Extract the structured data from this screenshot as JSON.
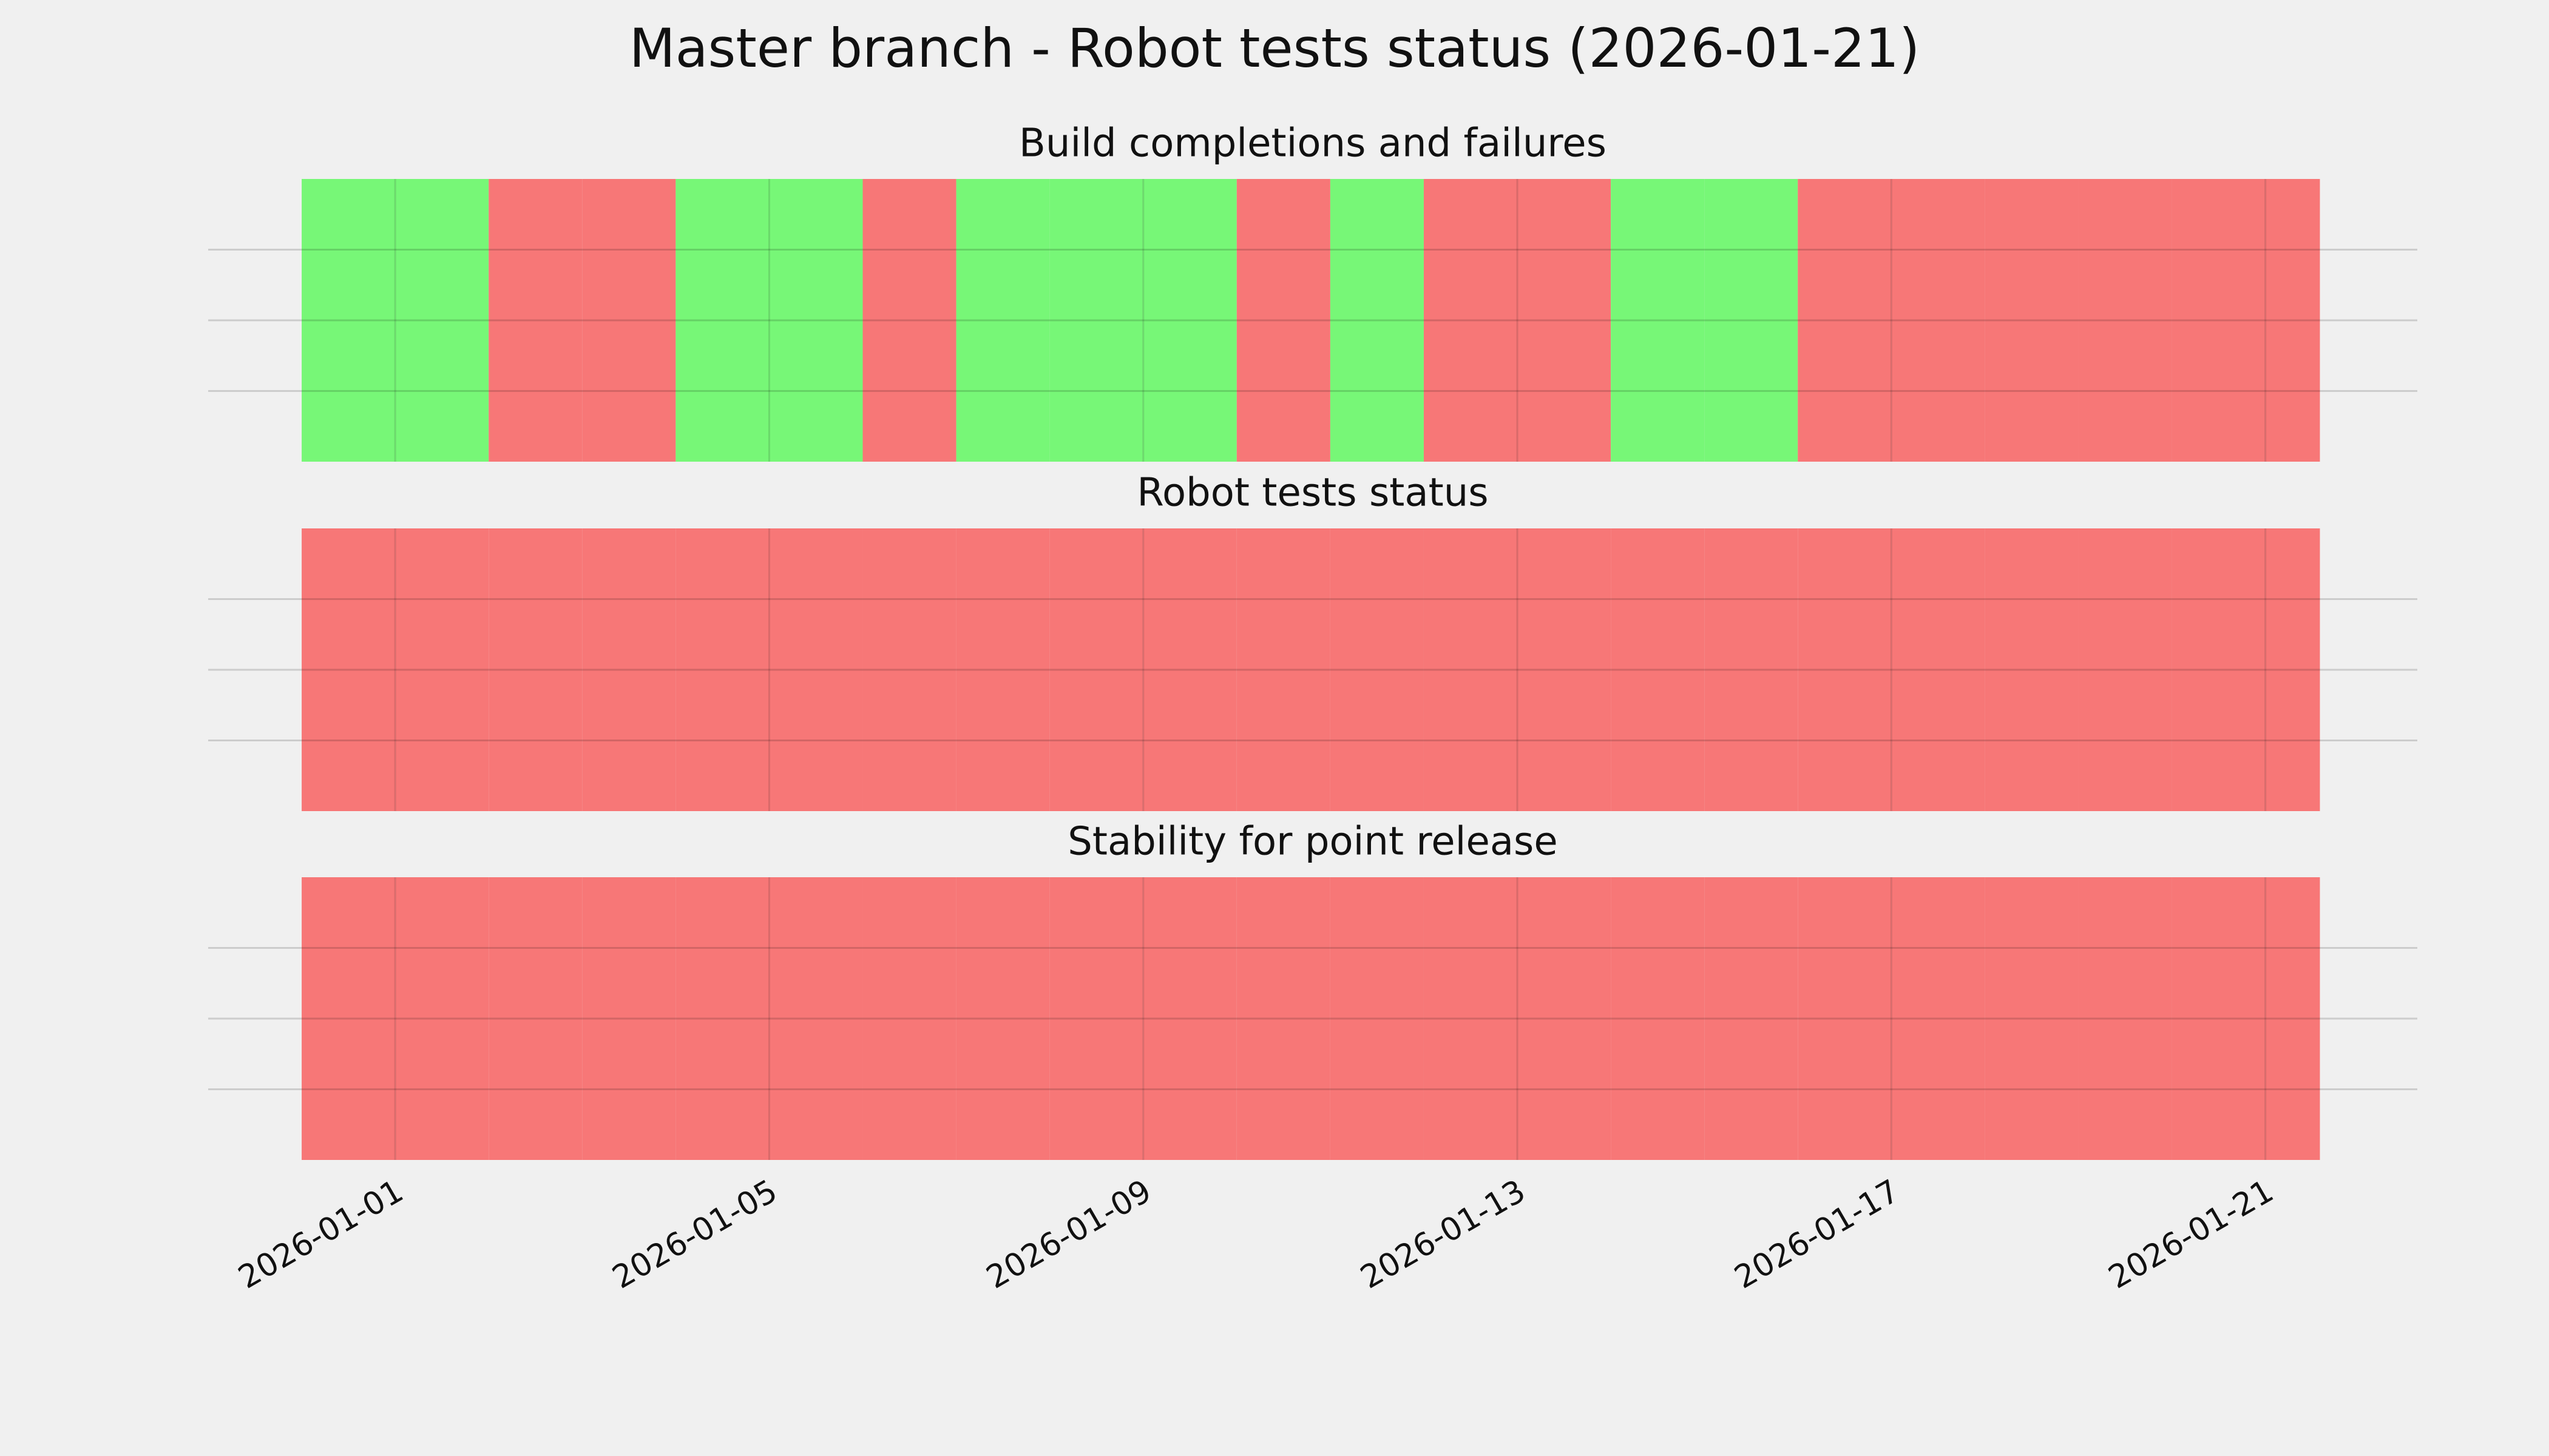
{
  "chart_data": {
    "type": "timeline",
    "title": "Master branch - Robot tests status (2026-01-21)",
    "xlim": [
      "2025-12-30",
      "2026-01-22T15:00"
    ],
    "end": "2026-01-21T14:00",
    "xticks": [
      "2026-01-01",
      "2026-01-05",
      "2026-01-09",
      "2026-01-13",
      "2026-01-17",
      "2026-01-21"
    ],
    "ylim": [
      0,
      1
    ],
    "yticks": [
      0.25,
      0.5,
      0.75
    ],
    "grid": true,
    "x": [
      "2025-12-31",
      "2026-01-01",
      "2026-01-02",
      "2026-01-03",
      "2026-01-04",
      "2026-01-05",
      "2026-01-06",
      "2026-01-07",
      "2026-01-08",
      "2026-01-09",
      "2026-01-10",
      "2026-01-11",
      "2026-01-12",
      "2026-01-13",
      "2026-01-14",
      "2026-01-15",
      "2026-01-16",
      "2026-01-17",
      "2026-01-18",
      "2026-01-19",
      "2026-01-20",
      "2026-01-21"
    ],
    "panels": [
      {
        "title": "Build completions and failures",
        "colors": [
          "#77f777",
          "#77f777",
          "#f77777",
          "#f77777",
          "#77f777",
          "#77f777",
          "#f77777",
          "#77f777",
          "#77f777",
          "#77f777",
          "#f77777",
          "#77f777",
          "#f77777",
          "#f77777",
          "#77f777",
          "#77f777",
          "#f77777",
          "#f77777",
          "#f77777",
          "#f77777",
          "#f77777",
          "#f77777"
        ]
      },
      {
        "title": "Robot tests status",
        "colors": [
          "#f77777",
          "#f77777",
          "#f77777",
          "#f77777",
          "#f77777",
          "#f77777",
          "#f77777",
          "#f77777",
          "#f77777",
          "#f77777",
          "#f77777",
          "#f77777",
          "#f77777",
          "#f77777",
          "#f77777",
          "#f77777",
          "#f77777",
          "#f77777",
          "#f77777",
          "#f77777",
          "#f77777",
          "#f77777"
        ]
      },
      {
        "title": "Stability for point release",
        "colors": [
          "#f77777",
          "#f77777",
          "#f77777",
          "#f77777",
          "#f77777",
          "#f77777",
          "#f77777",
          "#f77777",
          "#f77777",
          "#f77777",
          "#f77777",
          "#f77777",
          "#f77777",
          "#f77777",
          "#f77777",
          "#f77777",
          "#f77777",
          "#f77777",
          "#f77777",
          "#f77777",
          "#f77777",
          "#f77777"
        ]
      }
    ]
  }
}
